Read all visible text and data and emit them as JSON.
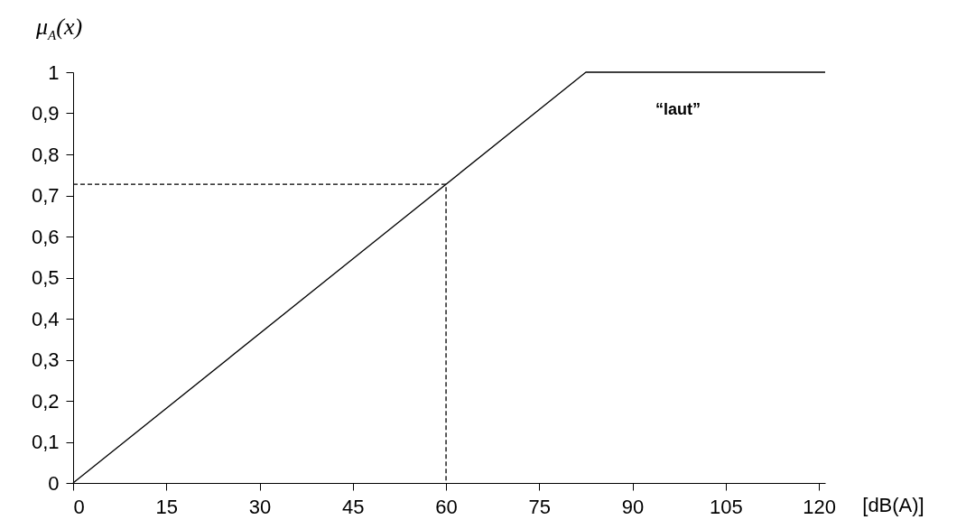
{
  "chart_data": {
    "type": "line",
    "ylabel": "μ$_{A}$(x)",
    "xlabel": "[dB(A)]",
    "xlim": [
      0,
      121
    ],
    "xticks": [
      0,
      15,
      30,
      45,
      60,
      75,
      90,
      105,
      120
    ],
    "ylim": [
      0,
      1
    ],
    "yticks": [
      0,
      {
        "value": 0.1,
        "label": "0,1"
      },
      {
        "value": 0.2,
        "label": "0,2"
      },
      {
        "value": 0.3,
        "label": "0,3"
      },
      {
        "value": 0.4,
        "label": "0,4"
      },
      {
        "value": 0.5,
        "label": "0,5"
      },
      {
        "value": 0.6,
        "label": "0,6"
      },
      {
        "value": 0.7,
        "label": "0,7"
      },
      {
        "value": 0.8,
        "label": "0,8"
      },
      {
        "value": 0.9,
        "label": "0,9"
      },
      1
    ],
    "series": [
      {
        "name": "“laut”",
        "color": "#000000",
        "x": [
          0,
          82.5,
          121
        ],
        "values": [
          0,
          1,
          1
        ],
        "line_style": "solid"
      },
      {
        "color": "#000000",
        "x": [
          0,
          60,
          60
        ],
        "values": [
          0.727,
          0.727,
          0
        ],
        "line_style": "dashed"
      }
    ]
  }
}
